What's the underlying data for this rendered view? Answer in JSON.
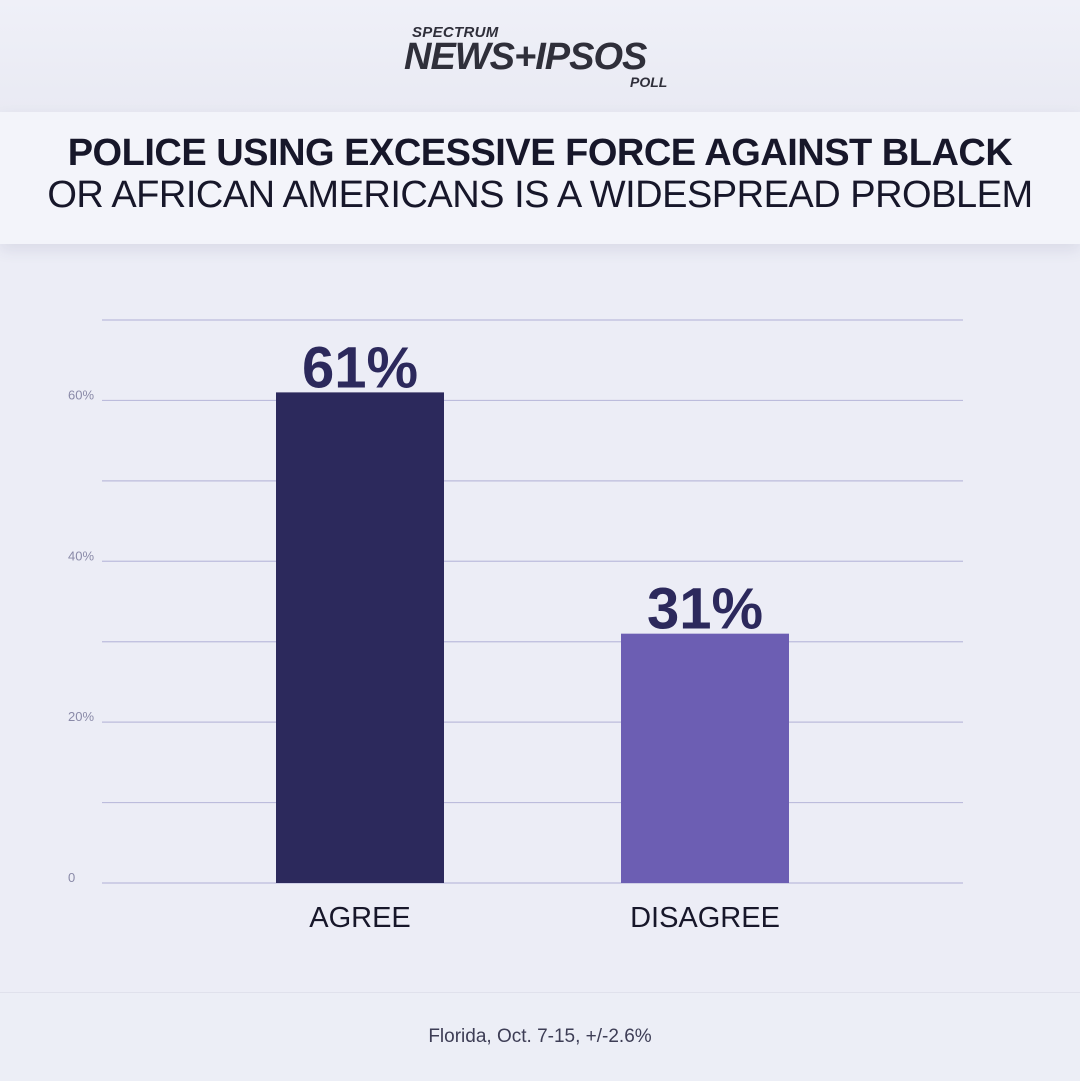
{
  "logo": {
    "top": "SPECTRUM",
    "main": "NEWS+IPSOS",
    "bottom": "POLL"
  },
  "title_line1": "POLICE USING EXCESSIVE FORCE AGAINST BLACK",
  "title_line2": "OR AFRICAN AMERICANS IS A WIDESPREAD PROBLEM",
  "footer": "Florida, Oct. 7-15, +/-2.6%",
  "chart_data": {
    "type": "bar",
    "categories": [
      "AGREE",
      "DISAGREE"
    ],
    "values": [
      61,
      31
    ],
    "data_labels": [
      "61%",
      "31%"
    ],
    "bar_colors": [
      "#2c295c",
      "#6c5eb3"
    ],
    "ylim": [
      0,
      70
    ],
    "yticks": [
      {
        "value": 0,
        "label": "0"
      },
      {
        "value": 20,
        "label": "20%"
      },
      {
        "value": 40,
        "label": "40%"
      },
      {
        "value": 60,
        "label": "60%"
      }
    ],
    "gridlines": [
      0,
      10,
      20,
      30,
      40,
      50,
      60,
      70
    ],
    "grid": true,
    "label_color": "#2c295c",
    "gridline_color": "#bcbcdc"
  }
}
